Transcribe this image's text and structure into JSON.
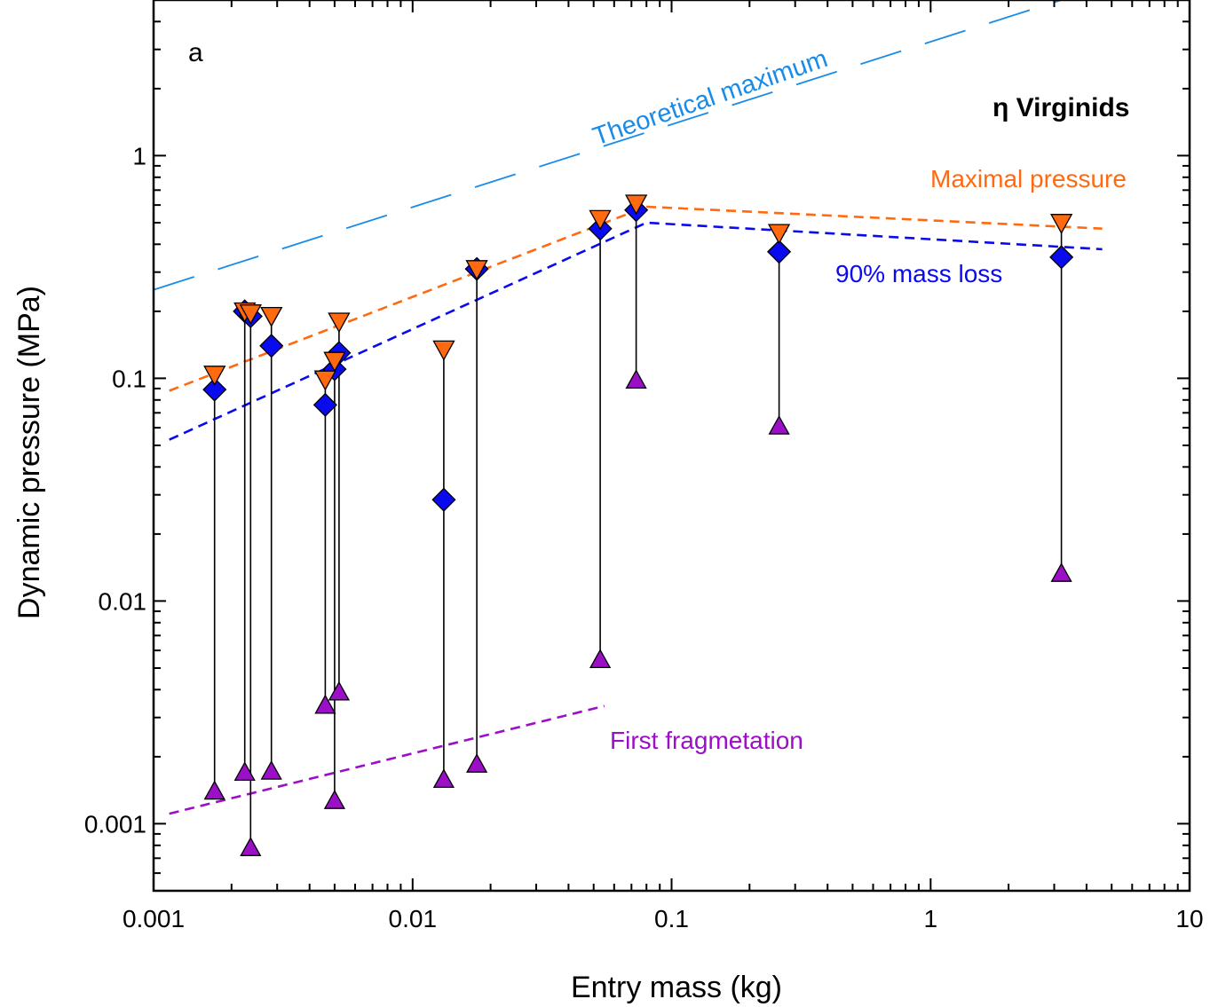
{
  "chart_data": {
    "type": "scatter",
    "panel_label": "a",
    "title": "η Virginids",
    "xlabel": "Entry mass (kg)",
    "ylabel": "Dynamic pressure (MPa)",
    "xscale": "log",
    "yscale": "log",
    "xlim": [
      0.001,
      10
    ],
    "ylim": [
      0.0005,
      5
    ],
    "xtick_values": [
      0.001,
      0.01,
      0.1,
      1,
      10
    ],
    "xtick_labels": [
      "0.001",
      "0.01",
      "0.1",
      "1",
      "10"
    ],
    "ytick_values": [
      0.001,
      0.01,
      0.1,
      1
    ],
    "ytick_labels": [
      "0.001",
      "0.01",
      "0.1",
      "1"
    ],
    "meteors": [
      {
        "mass": 0.00172,
        "first_fragmentation": 0.0014,
        "mass_loss_90": 0.089,
        "maximal_pressure": 0.104
      },
      {
        "mass": 0.00225,
        "first_fragmentation": 0.0017,
        "mass_loss_90": 0.2,
        "maximal_pressure": 0.2
      },
      {
        "mass": 0.00237,
        "first_fragmentation": 0.00078,
        "mass_loss_90": 0.19,
        "maximal_pressure": 0.196
      },
      {
        "mass": 0.00285,
        "first_fragmentation": 0.00172,
        "mass_loss_90": 0.14,
        "maximal_pressure": 0.191
      },
      {
        "mass": 0.0046,
        "first_fragmentation": 0.0034,
        "mass_loss_90": 0.076,
        "maximal_pressure": 0.099
      },
      {
        "mass": 0.005,
        "first_fragmentation": 0.00127,
        "mass_loss_90": 0.11,
        "maximal_pressure": 0.12
      },
      {
        "mass": 0.0052,
        "first_fragmentation": 0.0039,
        "mass_loss_90": 0.13,
        "maximal_pressure": 0.18
      },
      {
        "mass": 0.0132,
        "first_fragmentation": 0.00158,
        "mass_loss_90": 0.0285,
        "maximal_pressure": 0.135
      },
      {
        "mass": 0.0177,
        "first_fragmentation": 0.00185,
        "mass_loss_90": 0.31,
        "maximal_pressure": 0.31
      },
      {
        "mass": 0.053,
        "first_fragmentation": 0.00545,
        "mass_loss_90": 0.47,
        "maximal_pressure": 0.52
      },
      {
        "mass": 0.073,
        "first_fragmentation": 0.098,
        "mass_loss_90": 0.57,
        "maximal_pressure": 0.61
      },
      {
        "mass": 0.26,
        "first_fragmentation": 0.061,
        "mass_loss_90": 0.37,
        "maximal_pressure": 0.45
      },
      {
        "mass": 3.2,
        "first_fragmentation": 0.0133,
        "mass_loss_90": 0.35,
        "maximal_pressure": 0.5
      }
    ],
    "series": [
      {
        "name": "First fragmetation",
        "key": "first_fragmentation",
        "marker": "triangle-up",
        "color": "#9B0FC6"
      },
      {
        "name": "90% mass loss",
        "key": "mass_loss_90",
        "marker": "diamond",
        "color": "#0A0AF0"
      },
      {
        "name": "Maximal pressure",
        "key": "maximal_pressure",
        "marker": "triangle-down",
        "color": "#FF6A10"
      }
    ],
    "trend_lines": [
      {
        "name": "Theoretical maximum",
        "color": "#1A8CE8",
        "style": "long-dash",
        "points": [
          [
            0.001,
            0.25
          ],
          [
            3.2,
            5.0
          ]
        ]
      },
      {
        "name": "Maximal pressure",
        "color": "#FF6A10",
        "style": "short-dash",
        "points": [
          [
            0.00115,
            0.088
          ],
          [
            0.08,
            0.59
          ],
          [
            4.6,
            0.47
          ]
        ]
      },
      {
        "name": "90% mass loss",
        "color": "#0A0AF0",
        "style": "short-dash",
        "points": [
          [
            0.00115,
            0.053
          ],
          [
            0.08,
            0.5
          ],
          [
            4.6,
            0.38
          ]
        ]
      },
      {
        "name": "First fragmetation",
        "color": "#9B0FC6",
        "style": "short-dash",
        "points": [
          [
            0.00115,
            0.00111
          ],
          [
            0.055,
            0.00338
          ]
        ]
      }
    ],
    "annotations": [
      {
        "text": "Theoretical maximum",
        "color": "#1A8CE8"
      },
      {
        "text": "Maximal pressure",
        "color": "#FF6A10"
      },
      {
        "text": "90% mass loss",
        "color": "#0A0AF0"
      },
      {
        "text": "First fragmetation",
        "color": "#9B0FC6"
      }
    ],
    "colors": {
      "range_line": "#000000",
      "axis": "#000000"
    }
  }
}
